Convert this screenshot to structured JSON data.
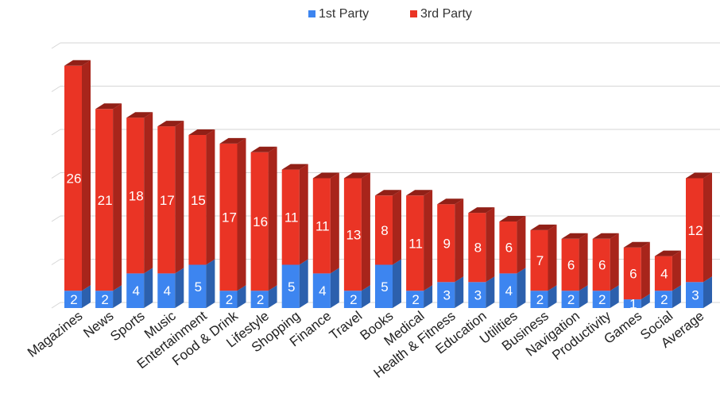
{
  "chart_data": {
    "type": "bar",
    "stacked": true,
    "style": "3d",
    "categories": [
      "Magazines",
      "News",
      "Sports",
      "Music",
      "Entertainment",
      "Food & Drink",
      "Lifestyle",
      "Shopping",
      "Finance",
      "Travel",
      "Books",
      "Medical",
      "Health & Fitness",
      "Education",
      "Utilities",
      "Business",
      "Navigation",
      "Productivity",
      "Games",
      "Social",
      "Average"
    ],
    "series": [
      {
        "name": "1st Party",
        "color": "#3d85f0",
        "values": [
          2,
          2,
          4,
          4,
          5,
          2,
          2,
          5,
          4,
          2,
          5,
          2,
          3,
          3,
          4,
          2,
          2,
          2,
          1,
          2,
          3
        ]
      },
      {
        "name": "3rd Party",
        "color": "#ea3425",
        "values": [
          26,
          21,
          18,
          17,
          15,
          17,
          16,
          11,
          11,
          13,
          8,
          11,
          9,
          8,
          6,
          7,
          6,
          6,
          6,
          4,
          12
        ]
      }
    ],
    "ylim": [
      0,
      30
    ],
    "grid": true,
    "legend_position": "top-center"
  }
}
